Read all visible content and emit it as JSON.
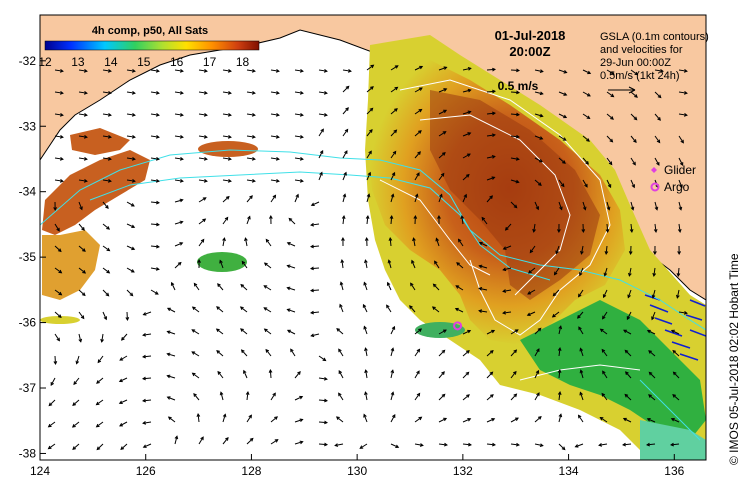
{
  "title": {
    "colorbar_title": "4h comp, p50, All Sats",
    "date": "01-Jul-2018",
    "time": "20:00Z"
  },
  "colorbar": {
    "ticks": [
      "12",
      "13",
      "14",
      "15",
      "16",
      "17",
      "18"
    ],
    "min": 12,
    "max": 18.5,
    "unit_note": ""
  },
  "gsla_note": {
    "line1": "GSLA (0.1m contours)",
    "line2": "and velocities for",
    "line3": "29-Jun 00:00Z",
    "line4": "0.5m/s (1kt 24h)"
  },
  "speed_label": "0.5 m/s",
  "legend": {
    "glider": "Glider",
    "argo": "Argo",
    "glider_color": "#e040e0",
    "argo_color": "#e040e0"
  },
  "credit": "© IMOS 05-Jul-2018 02:02 Hobart Time",
  "axes": {
    "x_ticks": [
      "124",
      "126",
      "128",
      "130",
      "132",
      "134",
      "136"
    ],
    "y_ticks": [
      "-32",
      "-33",
      "-34",
      "-35",
      "-36",
      "-37",
      "-38"
    ],
    "lon_range": [
      124,
      136.6
    ],
    "lat_range": [
      -38.1,
      -31.3
    ]
  },
  "colors": {
    "land": "#f8c8a0",
    "sst_warm": "#c0501a",
    "sst_mid": "#e8a020",
    "sst_cool": "#40b040",
    "contour_cyan": "#40e0e8"
  },
  "markers": {
    "argo": {
      "lon": 131.9,
      "lat": -36.05
    }
  }
}
